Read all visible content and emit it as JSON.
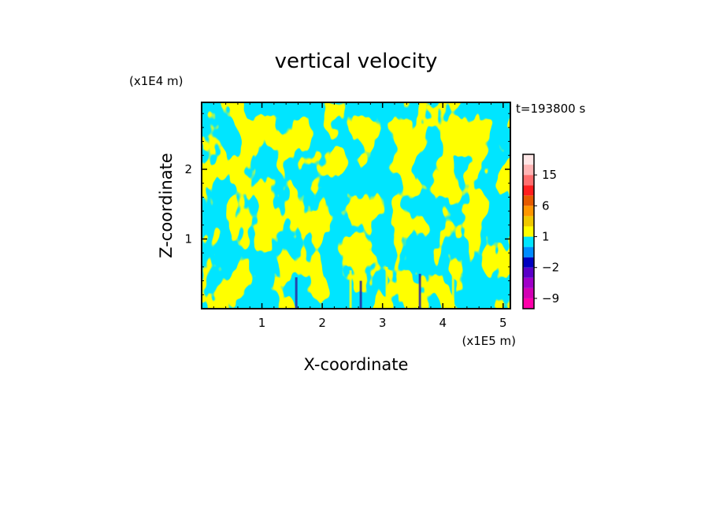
{
  "chart_data": {
    "type": "heatmap",
    "title": "vertical velocity",
    "xlabel": "X-coordinate",
    "ylabel": "Z-coordinate",
    "x_unit": "(x1E5 m)",
    "y_unit": "(x1E4 m)",
    "time_label": "t=193800 s",
    "xlim": [
      0,
      5.12
    ],
    "ylim": [
      0,
      2.96
    ],
    "x_ticks": [
      1,
      2,
      3,
      4,
      5
    ],
    "y_ticks": [
      1,
      2
    ],
    "x_tick_labels": [
      "1",
      "2",
      "3",
      "4",
      "5"
    ],
    "y_tick_labels": [
      "1",
      "2"
    ],
    "field_colors": {
      "positive": "#ffff00",
      "negative": "#00e5ff"
    },
    "colorbar": {
      "levels": [
        -12,
        -9,
        -6,
        -4,
        -2,
        -1,
        0,
        1,
        2,
        4,
        6,
        9,
        12,
        15,
        18,
        21
      ],
      "colors": [
        "#ff00aa",
        "#d200b4",
        "#a000c8",
        "#5a00c8",
        "#0000c0",
        "#008cff",
        "#00e5ff",
        "#ffff00",
        "#f0c800",
        "#ff9600",
        "#e65a00",
        "#ff1e1e",
        "#ff6e6e",
        "#ffb4b4",
        "#ffe6e6"
      ],
      "tick_labels": [
        {
          "value": -9,
          "label": "−9"
        },
        {
          "value": -2,
          "label": "−2"
        },
        {
          "value": 1,
          "label": "1"
        },
        {
          "value": 6,
          "label": "6"
        },
        {
          "value": 15,
          "label": "15"
        }
      ]
    }
  }
}
